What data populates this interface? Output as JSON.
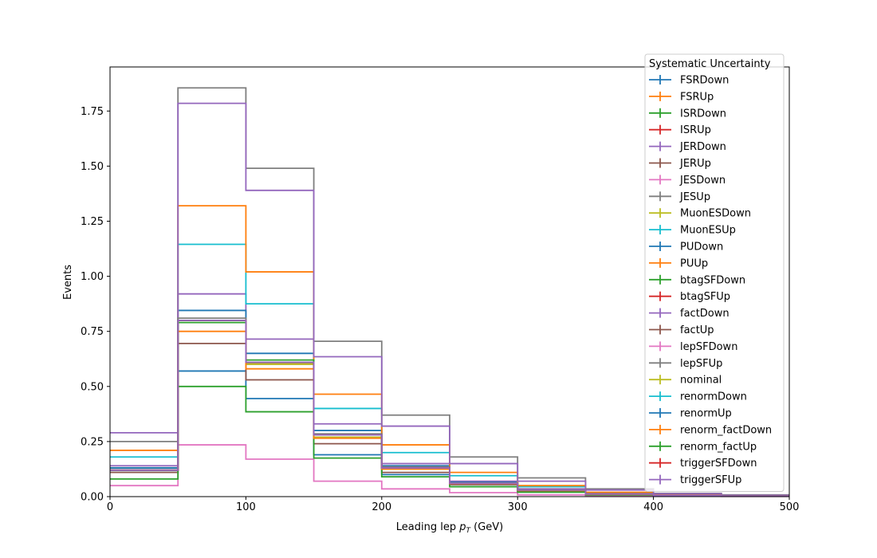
{
  "chart_data": {
    "type": "line",
    "drawstyle": "step-histogram",
    "xlabel_prefix": "Leading lep ",
    "xlabel_var": "p",
    "xlabel_sub": "T",
    "xlabel_suffix": " (GeV)",
    "ylabel": "Events",
    "xlim": [
      0,
      500
    ],
    "ylim": [
      0,
      1.95
    ],
    "xticks": [
      "0",
      "100",
      "200",
      "300",
      "400",
      "500"
    ],
    "yticks": [
      "0.00",
      "0.25",
      "0.50",
      "0.75",
      "1.00",
      "1.25",
      "1.50",
      "1.75"
    ],
    "grid": false,
    "legend": {
      "title": "Systematic Uncertainty",
      "placement": "top-right"
    },
    "bin_edges": [
      0,
      50,
      100,
      150,
      200,
      250,
      300,
      350,
      400,
      450,
      500
    ],
    "series": [
      {
        "name": "FSRDown",
        "color": "#1f77b4",
        "values": [
          0.11,
          0.57,
          0.445,
          0.19,
          0.1,
          0.055,
          0.025,
          0.01,
          0.005,
          0.003
        ]
      },
      {
        "name": "FSRUp",
        "color": "#ff7f0e",
        "values": [
          0.12,
          0.8,
          0.6,
          0.28,
          0.13,
          0.065,
          0.03,
          0.012,
          0.005,
          0.003
        ]
      },
      {
        "name": "ISRDown",
        "color": "#2ca02c",
        "values": [
          0.13,
          0.79,
          0.61,
          0.28,
          0.13,
          0.06,
          0.03,
          0.012,
          0.005,
          0.003
        ]
      },
      {
        "name": "ISRUp",
        "color": "#d62728",
        "values": [
          0.12,
          0.8,
          0.61,
          0.28,
          0.13,
          0.06,
          0.03,
          0.012,
          0.005,
          0.003
        ]
      },
      {
        "name": "JERDown",
        "color": "#9467bd",
        "values": [
          0.14,
          0.92,
          0.715,
          0.33,
          0.15,
          0.07,
          0.035,
          0.014,
          0.006,
          0.003
        ]
      },
      {
        "name": "JERUp",
        "color": "#8c564b",
        "values": [
          0.11,
          0.695,
          0.53,
          0.24,
          0.11,
          0.055,
          0.025,
          0.01,
          0.005,
          0.003
        ]
      },
      {
        "name": "JESDown",
        "color": "#e377c2",
        "values": [
          0.05,
          0.235,
          0.17,
          0.07,
          0.035,
          0.018,
          0.008,
          0.004,
          0.002,
          0.001
        ]
      },
      {
        "name": "JESUp",
        "color": "#7f7f7f",
        "values": [
          0.25,
          1.855,
          1.49,
          0.705,
          0.37,
          0.18,
          0.085,
          0.035,
          0.015,
          0.008
        ]
      },
      {
        "name": "MuonESDown",
        "color": "#bcbd22",
        "values": [
          0.12,
          0.8,
          0.605,
          0.27,
          0.125,
          0.06,
          0.028,
          0.011,
          0.005,
          0.003
        ]
      },
      {
        "name": "MuonESUp",
        "color": "#17becf",
        "values": [
          0.18,
          1.145,
          0.875,
          0.4,
          0.2,
          0.095,
          0.045,
          0.018,
          0.008,
          0.004
        ]
      },
      {
        "name": "PUDown",
        "color": "#1f77b4",
        "values": [
          0.13,
          0.845,
          0.65,
          0.3,
          0.14,
          0.065,
          0.03,
          0.012,
          0.005,
          0.003
        ]
      },
      {
        "name": "PUUp",
        "color": "#ff7f0e",
        "values": [
          0.21,
          1.32,
          1.02,
          0.465,
          0.235,
          0.11,
          0.05,
          0.02,
          0.009,
          0.004
        ]
      },
      {
        "name": "btagSFDown",
        "color": "#2ca02c",
        "values": [
          0.08,
          0.5,
          0.385,
          0.175,
          0.09,
          0.045,
          0.02,
          0.008,
          0.004,
          0.002
        ]
      },
      {
        "name": "btagSFUp",
        "color": "#d62728",
        "values": [
          0.12,
          0.8,
          0.61,
          0.28,
          0.13,
          0.06,
          0.03,
          0.012,
          0.005,
          0.003
        ]
      },
      {
        "name": "factDown",
        "color": "#9467bd",
        "values": [
          0.29,
          1.785,
          1.39,
          0.635,
          0.32,
          0.15,
          0.07,
          0.03,
          0.013,
          0.006
        ]
      },
      {
        "name": "factUp",
        "color": "#8c564b",
        "values": [
          0.12,
          0.8,
          0.61,
          0.28,
          0.13,
          0.06,
          0.03,
          0.012,
          0.005,
          0.003
        ]
      },
      {
        "name": "lepSFDown",
        "color": "#e377c2",
        "values": [
          0.12,
          0.8,
          0.6,
          0.28,
          0.13,
          0.06,
          0.03,
          0.012,
          0.005,
          0.003
        ]
      },
      {
        "name": "lepSFUp",
        "color": "#7f7f7f",
        "values": [
          0.12,
          0.81,
          0.61,
          0.285,
          0.135,
          0.062,
          0.03,
          0.012,
          0.005,
          0.003
        ]
      },
      {
        "name": "nominal",
        "color": "#bcbd22",
        "values": [
          0.12,
          0.8,
          0.6,
          0.28,
          0.13,
          0.06,
          0.03,
          0.012,
          0.005,
          0.003
        ]
      },
      {
        "name": "renormDown",
        "color": "#17becf",
        "values": [
          0.12,
          0.8,
          0.61,
          0.28,
          0.13,
          0.06,
          0.03,
          0.012,
          0.005,
          0.003
        ]
      },
      {
        "name": "renormUp",
        "color": "#1f77b4",
        "values": [
          0.12,
          0.8,
          0.61,
          0.28,
          0.13,
          0.06,
          0.03,
          0.012,
          0.005,
          0.003
        ]
      },
      {
        "name": "renorm_factDown",
        "color": "#ff7f0e",
        "values": [
          0.12,
          0.75,
          0.58,
          0.265,
          0.125,
          0.058,
          0.028,
          0.011,
          0.005,
          0.003
        ]
      },
      {
        "name": "renorm_factUp",
        "color": "#2ca02c",
        "values": [
          0.12,
          0.8,
          0.62,
          0.28,
          0.13,
          0.06,
          0.03,
          0.012,
          0.005,
          0.003
        ]
      },
      {
        "name": "triggerSFDown",
        "color": "#d62728",
        "values": [
          0.12,
          0.8,
          0.61,
          0.28,
          0.13,
          0.06,
          0.03,
          0.012,
          0.005,
          0.003
        ]
      },
      {
        "name": "triggerSFUp",
        "color": "#9467bd",
        "values": [
          0.12,
          0.8,
          0.61,
          0.28,
          0.13,
          0.06,
          0.03,
          0.012,
          0.005,
          0.003
        ]
      }
    ]
  }
}
